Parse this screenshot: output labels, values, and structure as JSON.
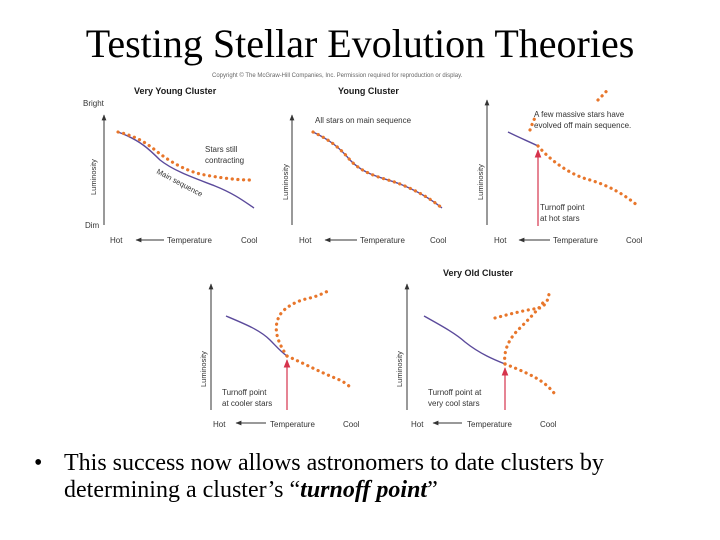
{
  "title": "Testing Stellar Evolution Theories",
  "copyright": "Copyright © The McGraw-Hill Companies, Inc. Permission required for reproduction or display.",
  "colors": {
    "main_sequence": "#5b4a9b",
    "stars": "#e8762b",
    "turnoff_arrow": "#d6334c",
    "axes": "#333333"
  },
  "axis_labels": {
    "bright": "Bright",
    "dim": "Dim",
    "luminosity": "Luminosity",
    "temperature": "Temperature",
    "hot": "Hot",
    "cool": "Cool"
  },
  "panels": [
    {
      "id": "very-young",
      "title": "Very Young Cluster",
      "annotations": [
        "Stars still",
        "contracting",
        "Main sequence"
      ]
    },
    {
      "id": "young",
      "title": "Young Cluster",
      "annotations": [
        "All stars on main sequence"
      ]
    },
    {
      "id": "old",
      "title": "",
      "annotations": [
        "A few massive stars have",
        "evolved off main sequence.",
        "Turnoff point",
        "at hot stars"
      ]
    },
    {
      "id": "older",
      "title": "",
      "annotations": [
        "Turnoff point",
        "at cooler stars"
      ]
    },
    {
      "id": "very-old",
      "title": "Very Old Cluster",
      "annotations": [
        "Turnoff point at",
        "very cool stars"
      ]
    }
  ],
  "bullet": {
    "marker": "•",
    "text_before": "This success now allows astronomers to date clusters by determining a cluster’s “",
    "emphasis": "turnoff point",
    "text_after": "”"
  }
}
